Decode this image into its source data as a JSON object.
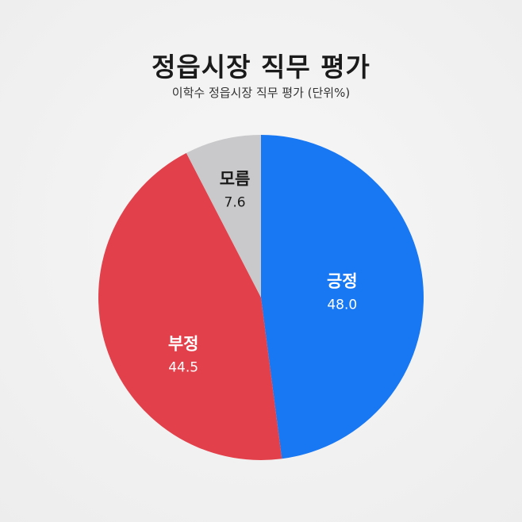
{
  "chart_data": {
    "type": "pie",
    "title": "정읍시장 직무 평가",
    "subtitle": "이학수 정읍시장 직무 평가 (단위%)",
    "start": "top",
    "direction": "clockwise",
    "slices": [
      {
        "label": "긍정",
        "value": 48.0,
        "display": "48.0",
        "color": "#1877F2",
        "text_color": "#ffffff"
      },
      {
        "label": "부정",
        "value": 44.5,
        "display": "44.5",
        "color": "#E2414B",
        "text_color": "#ffffff"
      },
      {
        "label": "모름",
        "value": 7.6,
        "display": "7.6",
        "color": "#C9C9CB",
        "text_color": "#1a1a1a"
      }
    ]
  }
}
